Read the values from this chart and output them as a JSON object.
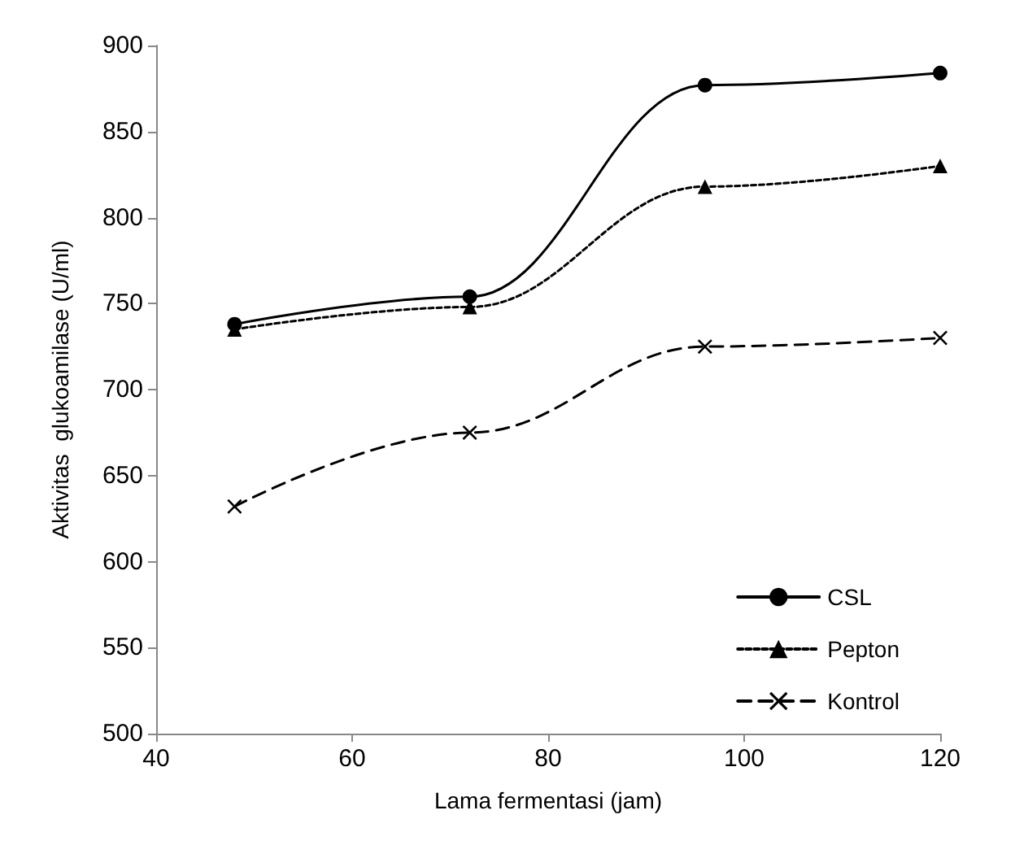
{
  "chart_data": {
    "type": "line",
    "xlabel": "Lama fermentasi (jam)",
    "ylabel": "Aktivitas  glukoamilase (U/ml)",
    "x": [
      48,
      72,
      96,
      120
    ],
    "series": [
      {
        "name": "CSL",
        "color": "#000000",
        "values": [
          738,
          754,
          877,
          884
        ],
        "marker": "circle",
        "line_style": "solid"
      },
      {
        "name": "Pepton",
        "color": "#000000",
        "values": [
          735,
          748,
          818,
          830
        ],
        "marker": "triangle",
        "line_style": "dotted"
      },
      {
        "name": "Kontrol",
        "color": "#000000",
        "values": [
          632,
          675,
          725,
          730
        ],
        "marker": "cross",
        "line_style": "dashed"
      }
    ],
    "xlim": [
      40,
      120
    ],
    "xticks": [
      40,
      60,
      80,
      100,
      120
    ],
    "ylim": [
      500,
      900
    ],
    "yticks": [
      500,
      550,
      600,
      650,
      700,
      750,
      800,
      850,
      900
    ],
    "grid": false,
    "legend": "bottom right"
  }
}
